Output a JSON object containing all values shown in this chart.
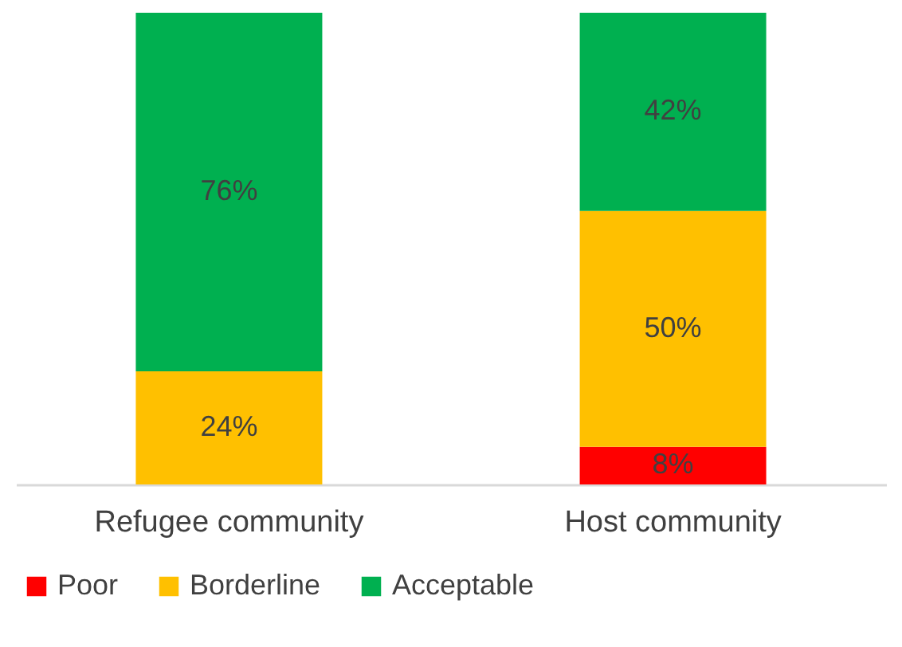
{
  "chart_data": {
    "type": "bar",
    "stacked": true,
    "categories": [
      "Refugee community",
      "Host community"
    ],
    "series": [
      {
        "name": "Poor",
        "color": "#ff0000",
        "values": [
          null,
          8
        ],
        "value_labels": [
          null,
          "8%"
        ]
      },
      {
        "name": "Borderline",
        "color": "#ffc000",
        "values": [
          24,
          50
        ],
        "value_labels": [
          "24%",
          "50%"
        ]
      },
      {
        "name": "Acceptable",
        "color": "#00b050",
        "values": [
          76,
          42
        ],
        "value_labels": [
          "76%",
          "42%"
        ]
      }
    ],
    "tick_labels": "x",
    "legend": "bottom",
    "grid": false
  }
}
